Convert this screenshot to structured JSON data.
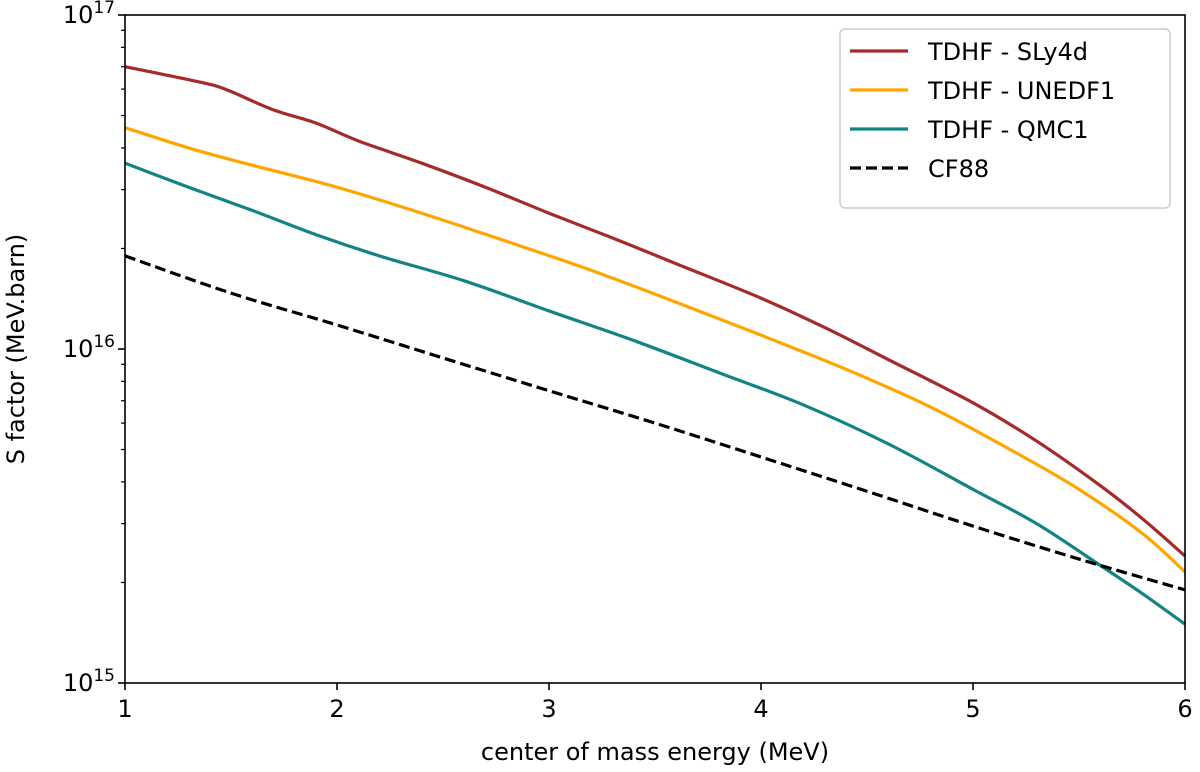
{
  "chart_data": {
    "type": "line",
    "title": "",
    "xlabel": "center of mass energy (MeV)",
    "ylabel": "S factor (MeV.barn)",
    "xlim": [
      1,
      6
    ],
    "ylim": [
      1000000000000000.0,
      1e+17
    ],
    "yscale": "log",
    "grid": false,
    "legend_position": "top-right",
    "x_ticks": [
      {
        "value": 1,
        "label": "1"
      },
      {
        "value": 2,
        "label": "2"
      },
      {
        "value": 3,
        "label": "3"
      },
      {
        "value": 4,
        "label": "4"
      },
      {
        "value": 5,
        "label": "5"
      },
      {
        "value": 6,
        "label": "6"
      }
    ],
    "y_ticks": [
      {
        "value": 1000000000000000.0,
        "mantissa": "10",
        "exp": "15"
      },
      {
        "value": 1e+16,
        "mantissa": "10",
        "exp": "16"
      },
      {
        "value": 1e+17,
        "mantissa": "10",
        "exp": "17"
      }
    ],
    "series": [
      {
        "name": "TDHF - SLy4d",
        "color": "#a52a2a",
        "dash": "solid",
        "x": [
          1.0,
          1.2,
          1.4,
          1.5,
          1.7,
          1.9,
          2.1,
          2.4,
          2.7,
          3.0,
          3.3,
          3.6,
          4.0,
          4.3,
          4.6,
          5.0,
          5.3,
          5.6,
          5.8,
          6.0
        ],
        "y": [
          7e+16,
          6.6e+16,
          6.2e+16,
          5.9e+16,
          5.2e+16,
          4.75e+16,
          4.2e+16,
          3.6e+16,
          3.05e+16,
          2.55e+16,
          2.15e+16,
          1.8e+16,
          1.42e+16,
          1.16e+16,
          9300000000000000.0,
          6900000000000000.0,
          5300000000000000.0,
          3900000000000000.0,
          3100000000000000.0,
          2400000000000000.0
        ]
      },
      {
        "name": "TDHF - UNEDF1",
        "color": "#ffa500",
        "dash": "solid",
        "x": [
          1.0,
          1.3,
          1.6,
          2.0,
          2.4,
          2.8,
          3.2,
          3.6,
          4.0,
          4.4,
          4.8,
          5.2,
          5.5,
          5.8,
          6.0
        ],
        "y": [
          4.6e+16,
          4e+16,
          3.55e+16,
          3.05e+16,
          2.55e+16,
          2.1e+16,
          1.72e+16,
          1.38e+16,
          1.1e+16,
          8700000000000000.0,
          6700000000000000.0,
          4900000000000000.0,
          3800000000000000.0,
          2800000000000000.0,
          2150000000000000.0
        ]
      },
      {
        "name": "TDHF - QMC1",
        "color": "#138383",
        "dash": "solid",
        "x": [
          1.0,
          1.3,
          1.6,
          1.9,
          2.2,
          2.6,
          3.0,
          3.4,
          3.8,
          4.2,
          4.6,
          5.0,
          5.3,
          5.6,
          5.8,
          6.0
        ],
        "y": [
          3.6e+16,
          3.05e+16,
          2.6e+16,
          2.2e+16,
          1.9e+16,
          1.6e+16,
          1.3e+16,
          1.06e+16,
          8500000000000000.0,
          6800000000000000.0,
          5200000000000000.0,
          3800000000000000.0,
          3000000000000000.0,
          2250000000000000.0,
          1850000000000000.0,
          1500000000000000.0
        ]
      },
      {
        "name": "CF88",
        "color": "#000000",
        "dash": "dashed",
        "x": [
          1.0,
          1.5,
          2.0,
          2.5,
          3.0,
          3.5,
          4.0,
          4.5,
          5.0,
          5.5,
          6.0
        ],
        "y": [
          1.9e+16,
          1.47e+16,
          1.18e+16,
          9400000000000000.0,
          7500000000000000.0,
          6000000000000000.0,
          4750000000000000.0,
          3750000000000000.0,
          2950000000000000.0,
          2350000000000000.0,
          1900000000000000.0
        ]
      }
    ]
  }
}
